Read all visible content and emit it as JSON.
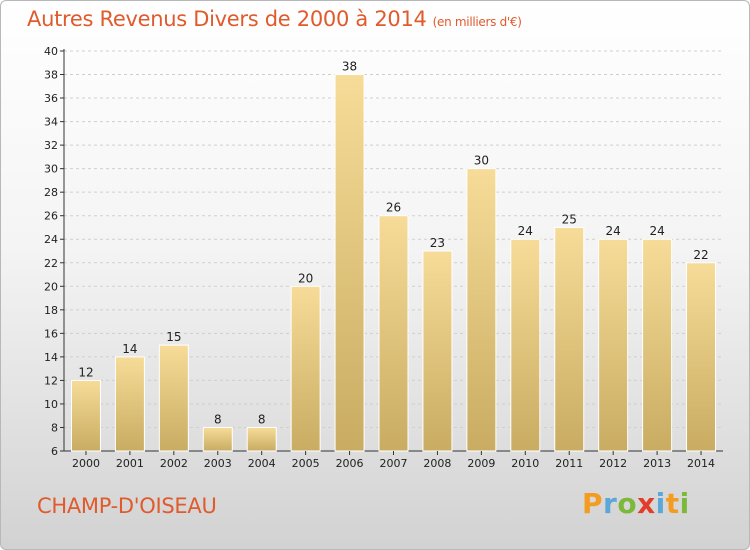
{
  "title": "Autres Revenus Divers de 2000 à 2014",
  "unit": "(en milliers d'€)",
  "place": "CHAMP-D'OISEAU",
  "logo": {
    "text": "Proxiti",
    "letters": [
      {
        "ch": "P",
        "color": "#f39c1f"
      },
      {
        "ch": "r",
        "color": "#5aa7d8"
      },
      {
        "ch": "o",
        "color": "#7cb83a"
      },
      {
        "ch": "x",
        "color": "#e23c2b"
      },
      {
        "ch": "i",
        "color": "#5aa7d8"
      },
      {
        "ch": "t",
        "color": "#f39c1f"
      },
      {
        "ch": "i",
        "color": "#7cb83a"
      }
    ]
  },
  "colors": {
    "title": "#e05a2c",
    "bar_top": "#f6dc98",
    "bar_bottom": "#c9ac62",
    "grid": "#cfcfcf"
  },
  "chart_data": {
    "type": "bar",
    "categories": [
      "2000",
      "2001",
      "2002",
      "2003",
      "2004",
      "2005",
      "2006",
      "2007",
      "2008",
      "2009",
      "2010",
      "2011",
      "2012",
      "2013",
      "2014"
    ],
    "values": [
      12,
      14,
      15,
      8,
      8,
      20,
      38,
      26,
      23,
      30,
      24,
      25,
      24,
      24,
      22
    ],
    "ylim": [
      6,
      40
    ],
    "yticks": [
      6,
      8,
      10,
      12,
      14,
      16,
      18,
      20,
      22,
      24,
      26,
      28,
      30,
      32,
      34,
      36,
      38,
      40
    ],
    "grid": "horizontal dashed",
    "data_labels": true
  }
}
